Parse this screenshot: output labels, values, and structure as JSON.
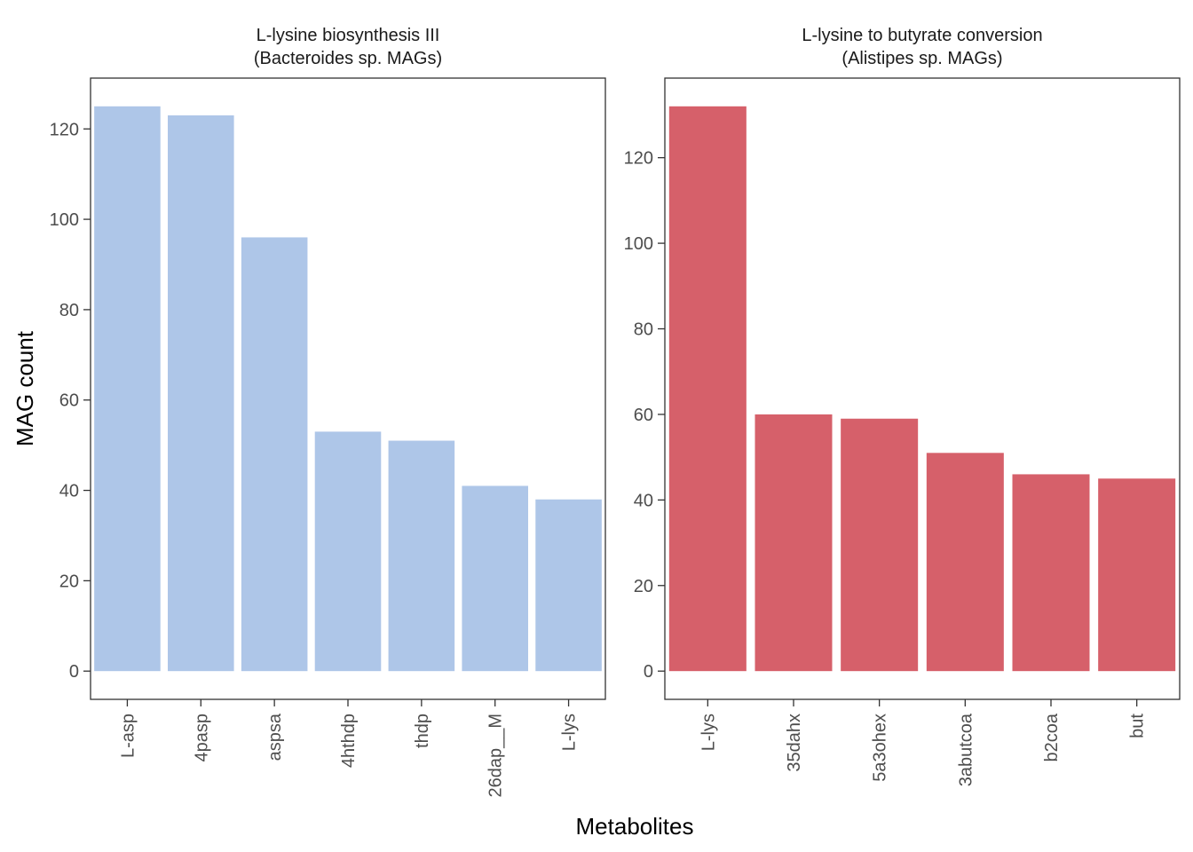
{
  "axis_titles": {
    "x": "Metabolites",
    "y": "MAG count"
  },
  "chart_data": [
    {
      "type": "bar",
      "title": "L-lysine biosynthesis III",
      "subtitle": "(Bacteroides sp. MAGs)",
      "xlabel": "Metabolites",
      "ylabel": "MAG count",
      "categories": [
        "L-asp",
        "4pasp",
        "aspsa",
        "4hthdp",
        "thdp",
        "26dap__M",
        "L-lys"
      ],
      "values": [
        125,
        123,
        96,
        53,
        51,
        41,
        38
      ],
      "ylim": [
        -6.25,
        131.25
      ],
      "yticks": [
        0,
        20,
        40,
        60,
        80,
        100,
        120
      ],
      "color": "#aec6e8",
      "grid": false
    },
    {
      "type": "bar",
      "title": "L-lysine to butyrate conversion",
      "subtitle": "(Alistipes sp. MAGs)",
      "xlabel": "Metabolites",
      "ylabel": "MAG count",
      "categories": [
        "L-lys",
        "35dahx",
        "5a3ohex",
        "3abutcoa",
        "b2coa",
        "but"
      ],
      "values": [
        132,
        60,
        59,
        51,
        46,
        45
      ],
      "ylim": [
        -6.6,
        138.6
      ],
      "yticks": [
        0,
        20,
        40,
        60,
        80,
        100,
        120
      ],
      "color": "#d6606a",
      "grid": false
    }
  ]
}
